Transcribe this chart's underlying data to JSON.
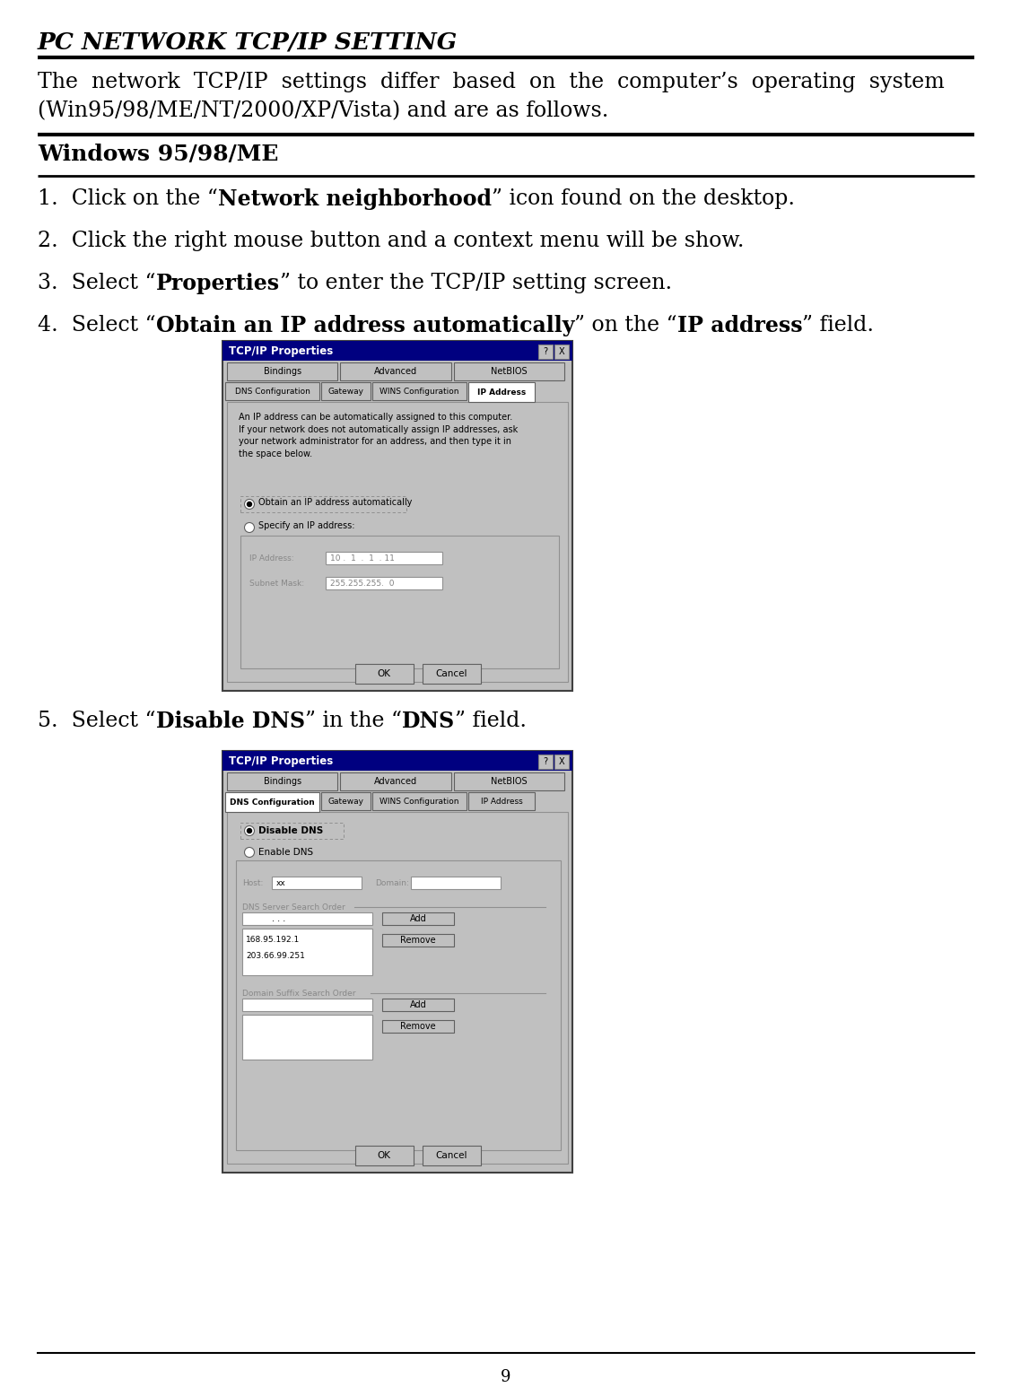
{
  "title": "PC NETWORK TCP/IP SETTING",
  "intro_line1": "The  network  TCP/IP  settings  differ  based  on  the  computer’s  operating  system",
  "intro_line2": "(Win95/98/ME/NT/2000/XP/Vista) and are as follows.",
  "section1": "Windows 95/98/ME",
  "step1_plain1": "1.  Click on the “",
  "step1_bold": "Network neighborhood",
  "step1_plain2": "” icon found on the desktop.",
  "step2": "2.  Click the right mouse button and a context menu will be show.",
  "step3_plain1": "3.  Select “",
  "step3_bold": "Properties",
  "step3_plain2": "” to enter the TCP/IP setting screen.",
  "step4_plain1": "4.  Select “",
  "step4_bold1": "Obtain an IP address automatically",
  "step4_plain2": "” on the “",
  "step4_bold2": "IP address",
  "step4_plain3": "” field.",
  "step5_plain1": "5.  Select “",
  "step5_bold1": "Disable DNS",
  "step5_plain2": "” in the “",
  "step5_bold2": "DNS",
  "step5_plain3": "” field.",
  "page_number": "9",
  "dialog1_title": "TCP/IP Properties",
  "dialog1_tab_active": "IP Address",
  "dialog1_tabs_row1": [
    "Bindings",
    "Advanced",
    "NetBIOS"
  ],
  "dialog1_tabs_row2": [
    "DNS Configuration",
    "Gateway",
    "WINS Configuration",
    "IP Address"
  ],
  "dialog1_desc": "An IP address can be automatically assigned to this computer.\nIf your network does not automatically assign IP addresses, ask\nyour network administrator for an address, and then type it in\nthe space below.",
  "dialog1_radio1": "Obtain an IP address automatically",
  "dialog1_radio2": "Specify an IP address:",
  "dialog1_ip_label": "IP Address:",
  "dialog1_ip_value": "10 .  1  .  1  . 11",
  "dialog1_sm_label": "Subnet Mask:",
  "dialog1_sm_value": "255.255.255.  0",
  "dialog2_title": "TCP/IP Properties",
  "dialog2_tabs_row1": [
    "Bindings",
    "Advanced",
    "NetBIOS"
  ],
  "dialog2_tabs_row2": [
    "DNS Configuration",
    "Gateway",
    "WINS Configuration",
    "IP Address"
  ],
  "dialog2_radio1": "Disable DNS",
  "dialog2_radio2": "Enable DNS",
  "dialog2_host_label": "Host:",
  "dialog2_host_value": "xx",
  "dialog2_domain_label": "Domain:",
  "dialog2_dns_group": "DNS Server Search Order",
  "dialog2_dns_entries": [
    "168.95.192.1",
    "203.66.99.251"
  ],
  "dialog2_ds_group": "Domain Suffix Search Order",
  "bg_color": "#ffffff"
}
